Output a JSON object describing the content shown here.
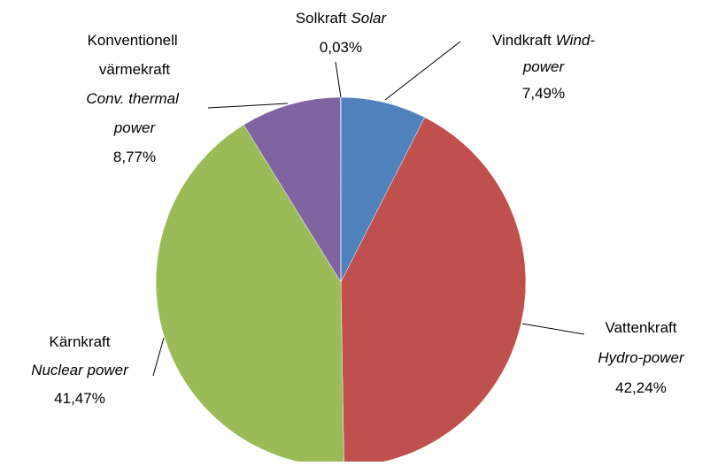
{
  "chart_data": {
    "type": "pie",
    "categories": [
      "Vindkraft",
      "Vattenkraft",
      "Kärnkraft",
      "Konventionell värmekraft",
      "Solkraft"
    ],
    "categories_en": [
      "Wind-power",
      "Hydro-power",
      "Nuclear power",
      "Conv. thermal power",
      "Solar"
    ],
    "values": [
      7.49,
      42.24,
      41.47,
      8.77,
      0.03
    ],
    "value_labels": [
      "7,49%",
      "42,24%",
      "41,47%",
      "8,77%",
      "0,03%"
    ],
    "colors": [
      "#4f81bd",
      "#c0504d",
      "#9bbb59",
      "#8064a2",
      "#4bacc6"
    ]
  }
}
